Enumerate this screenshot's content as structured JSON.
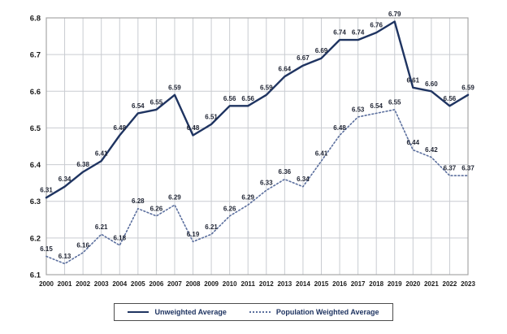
{
  "chart_data": {
    "type": "line",
    "title": "",
    "xlabel": "",
    "ylabel": "",
    "ylim": [
      6.1,
      6.8
    ],
    "ytick_step": 0.1,
    "yticks": [
      "6.1",
      "6.2",
      "6.3",
      "6.4",
      "6.5",
      "6.6",
      "6.7",
      "6.8"
    ],
    "grid": true,
    "legend_position": "bottom",
    "categories": [
      "2000",
      "2001",
      "2002",
      "2003",
      "2004",
      "2005",
      "2006",
      "2007",
      "2008",
      "2009",
      "2010",
      "2011",
      "2012",
      "2013",
      "2014",
      "2015",
      "2016",
      "2017",
      "2018",
      "2019",
      "2020",
      "2021",
      "2022",
      "2023"
    ],
    "series": [
      {
        "name": "Unweighted Average",
        "line_style": "solid",
        "color": "#1f3461",
        "values": [
          6.31,
          6.34,
          6.38,
          6.41,
          6.48,
          6.54,
          6.55,
          6.59,
          6.48,
          6.51,
          6.56,
          6.56,
          6.59,
          6.64,
          6.67,
          6.69,
          6.74,
          6.74,
          6.76,
          6.79,
          6.61,
          6.6,
          6.56,
          6.59
        ],
        "labels": [
          "6.31",
          "6.34",
          "6.38",
          "6.41",
          "6.48",
          "6.54",
          "6.55",
          "6.59",
          "6.48",
          "6.51",
          "6.56",
          "6.56",
          "6.59",
          "6.64",
          "6.67",
          "6.69",
          "6.74",
          "6.74",
          "6.76",
          "6.79",
          "6.61",
          "6.60",
          "6.56",
          "6.59"
        ]
      },
      {
        "name": "Population Weighted Average",
        "line_style": "dotted",
        "color": "#5b6f9e",
        "values": [
          6.15,
          6.13,
          6.16,
          6.21,
          6.18,
          6.28,
          6.26,
          6.29,
          6.19,
          6.21,
          6.26,
          6.29,
          6.33,
          6.36,
          6.34,
          6.41,
          6.48,
          6.53,
          6.54,
          6.55,
          6.44,
          6.42,
          6.37,
          6.37
        ],
        "labels": [
          "6.15",
          "6.13",
          "6.16",
          "6.21",
          "6.18",
          "6.28",
          "6.26",
          "6.29",
          "6.19",
          "6.21",
          "6.26",
          "6.29",
          "6.33",
          "6.36",
          "6.34",
          "6.41",
          "6.48",
          "6.53",
          "6.54",
          "6.55",
          "6.44",
          "6.42",
          "6.37",
          "6.37"
        ]
      }
    ],
    "colors": {
      "gridline": "#c9ccd1",
      "plot_border": "#a6a6a6",
      "point_label": "#1f2433",
      "axis_label": "#1a1a1a"
    }
  }
}
